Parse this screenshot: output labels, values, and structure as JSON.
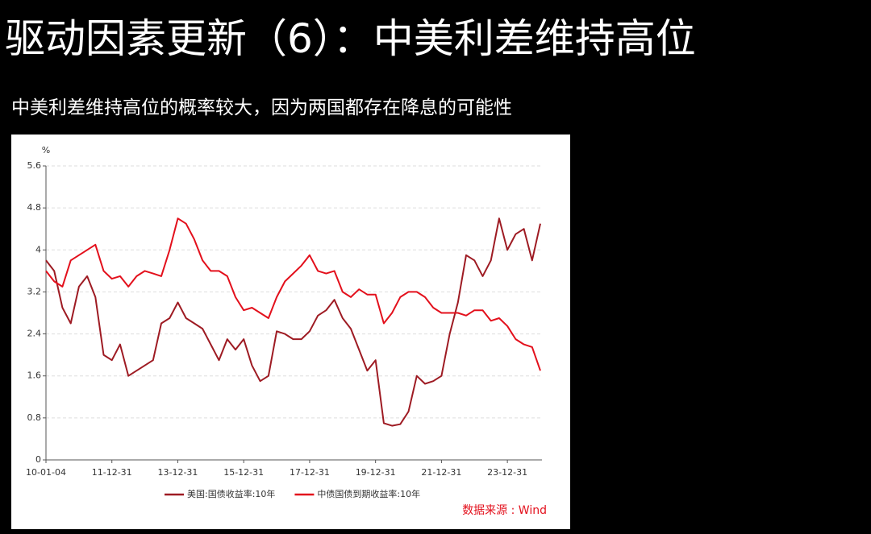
{
  "title": "驱动因素更新（6）：中美利差维持高位",
  "subtitle": "中美利差维持高位的概率较大，因为两国都存在降息的可能性",
  "chart_data": {
    "type": "line",
    "y_unit": "%",
    "source": "数据来源 : Wind",
    "categories": [
      "10-01-04",
      null,
      null,
      null,
      null,
      null,
      null,
      null,
      "11-12-31",
      null,
      null,
      null,
      null,
      null,
      null,
      null,
      "13-12-31",
      null,
      null,
      null,
      null,
      null,
      null,
      null,
      "15-12-31",
      null,
      null,
      null,
      null,
      null,
      null,
      null,
      "17-12-31",
      null,
      null,
      null,
      null,
      null,
      null,
      null,
      "19-12-31",
      null,
      null,
      null,
      null,
      null,
      null,
      null,
      "21-12-31",
      null,
      null,
      null,
      null,
      null,
      null,
      null,
      "23-12-31",
      null,
      null,
      null,
      null
    ],
    "series": [
      {
        "name": "美国:国债收益率:10年",
        "color": "#9e1b23",
        "values": [
          3.8,
          3.6,
          2.9,
          2.6,
          3.3,
          3.5,
          3.1,
          2.0,
          1.9,
          2.2,
          1.6,
          1.7,
          1.8,
          1.9,
          2.6,
          2.7,
          3.0,
          2.7,
          2.6,
          2.5,
          2.2,
          1.9,
          2.3,
          2.1,
          2.3,
          1.8,
          1.5,
          1.6,
          2.45,
          2.4,
          2.3,
          2.3,
          2.45,
          2.75,
          2.85,
          3.05,
          2.7,
          2.5,
          2.1,
          1.7,
          1.9,
          0.7,
          0.65,
          0.68,
          0.92,
          1.6,
          1.45,
          1.5,
          1.6,
          2.4,
          3.0,
          3.9,
          3.8,
          3.5,
          3.8,
          4.6,
          4.0,
          4.3,
          4.4,
          3.8,
          4.5
        ]
      },
      {
        "name": "中债国债到期收益率:10年",
        "color": "#e3101c",
        "values": [
          3.6,
          3.4,
          3.3,
          3.8,
          3.9,
          4.0,
          4.1,
          3.6,
          3.45,
          3.5,
          3.3,
          3.5,
          3.6,
          3.55,
          3.5,
          4.0,
          4.6,
          4.5,
          4.2,
          3.8,
          3.6,
          3.6,
          3.5,
          3.1,
          2.85,
          2.9,
          2.8,
          2.7,
          3.1,
          3.4,
          3.55,
          3.7,
          3.9,
          3.6,
          3.55,
          3.6,
          3.2,
          3.1,
          3.25,
          3.15,
          3.15,
          2.6,
          2.8,
          3.1,
          3.2,
          3.2,
          3.1,
          2.9,
          2.8,
          2.8,
          2.8,
          2.75,
          2.85,
          2.85,
          2.65,
          2.7,
          2.55,
          2.3,
          2.2,
          2.15,
          1.7
        ]
      }
    ],
    "ylim": [
      0,
      5.6
    ],
    "yticks": [
      0,
      0.8,
      1.6,
      2.4,
      3.2,
      4,
      4.8,
      5.6
    ],
    "grid": true,
    "legend": "bottom"
  }
}
